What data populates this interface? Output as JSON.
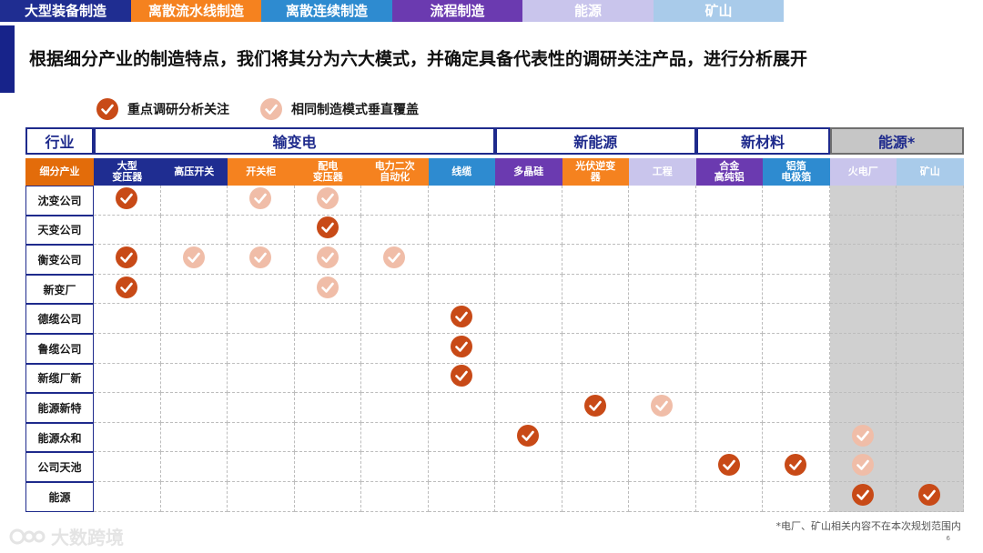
{
  "tabs": [
    {
      "label": "大型装备制造",
      "color": "#1f2d91"
    },
    {
      "label": "离散流水线制造",
      "color": "#f5821f"
    },
    {
      "label": "离散连续制造",
      "color": "#2e8bd0"
    },
    {
      "label": "流程制造",
      "color": "#6b3ab0"
    },
    {
      "label": "能源",
      "color": "#c9c5ec"
    },
    {
      "label": "矿山",
      "color": "#a9cbea"
    }
  ],
  "headline": "根据细分产业的制造特点，我们将其分为六大模式，并确定具备代表性的调研关注产品，进行分析展开",
  "legend": {
    "primary": {
      "label": "重点调研分析关注",
      "icon": "check-circle-icon",
      "color": "#c84a17"
    },
    "secondary": {
      "label": "相同制造模式垂直覆盖",
      "icon": "check-circle-icon",
      "color": "#f0bda8"
    }
  },
  "table": {
    "corner": "行业",
    "row_label_header": "细分产业",
    "groups": [
      {
        "label": "输变电",
        "span": 6
      },
      {
        "label": "新能源",
        "span": 3
      },
      {
        "label": "新材料",
        "span": 2
      },
      {
        "label": "能源*",
        "span": 2
      }
    ],
    "columns": [
      {
        "label": "大型\n变压器",
        "color": "#1f2d91"
      },
      {
        "label": "高压开关",
        "color": "#1f2d91"
      },
      {
        "label": "开关柜",
        "color": "#f5821f"
      },
      {
        "label": "配电\n变压器",
        "color": "#f5821f"
      },
      {
        "label": "电力二次\n自动化",
        "color": "#f5821f"
      },
      {
        "label": "线缆",
        "color": "#2e8bd0"
      },
      {
        "label": "多晶硅",
        "color": "#6b3ab0"
      },
      {
        "label": "光伏逆变\n器",
        "color": "#f5821f"
      },
      {
        "label": "工程",
        "color": "#c9c5ec"
      },
      {
        "label": "合金\n高纯铝",
        "color": "#6b3ab0"
      },
      {
        "label": "铝箔\n电极箔",
        "color": "#2e8bd0"
      },
      {
        "label": "火电厂",
        "color": "#c9c5ec"
      },
      {
        "label": "矿山",
        "color": "#a9cbea"
      }
    ],
    "rows": [
      {
        "company": "沈变公司",
        "marks": [
          1,
          0,
          2,
          2,
          0,
          0,
          0,
          0,
          0,
          0,
          0,
          0,
          0
        ]
      },
      {
        "company": "天变公司",
        "marks": [
          0,
          0,
          0,
          1,
          0,
          0,
          0,
          0,
          0,
          0,
          0,
          0,
          0
        ]
      },
      {
        "company": "衡变公司",
        "marks": [
          1,
          2,
          2,
          2,
          2,
          0,
          0,
          0,
          0,
          0,
          0,
          0,
          0
        ]
      },
      {
        "company": "新变厂",
        "marks": [
          1,
          0,
          0,
          2,
          0,
          0,
          0,
          0,
          0,
          0,
          0,
          0,
          0
        ]
      },
      {
        "company": "德缆公司",
        "marks": [
          0,
          0,
          0,
          0,
          0,
          1,
          0,
          0,
          0,
          0,
          0,
          0,
          0
        ]
      },
      {
        "company": "鲁缆公司",
        "marks": [
          0,
          0,
          0,
          0,
          0,
          1,
          0,
          0,
          0,
          0,
          0,
          0,
          0
        ]
      },
      {
        "company": "新缆厂新",
        "marks": [
          0,
          0,
          0,
          0,
          0,
          1,
          0,
          0,
          0,
          0,
          0,
          0,
          0
        ]
      },
      {
        "company": "能源新特",
        "marks": [
          0,
          0,
          0,
          0,
          0,
          0,
          0,
          1,
          2,
          0,
          0,
          0,
          0
        ]
      },
      {
        "company": "能源众和",
        "marks": [
          0,
          0,
          0,
          0,
          0,
          0,
          1,
          0,
          0,
          0,
          0,
          2,
          0
        ]
      },
      {
        "company": "公司天池",
        "marks": [
          0,
          0,
          0,
          0,
          0,
          0,
          0,
          0,
          0,
          1,
          1,
          2,
          0
        ]
      },
      {
        "company": "能源",
        "marks": [
          0,
          0,
          0,
          0,
          0,
          0,
          0,
          0,
          0,
          0,
          0,
          1,
          1
        ]
      }
    ]
  },
  "footnote": "*电厂、矿山相关内容不在本次规划范围内",
  "page_number": "6",
  "watermark": "大数跨境"
}
